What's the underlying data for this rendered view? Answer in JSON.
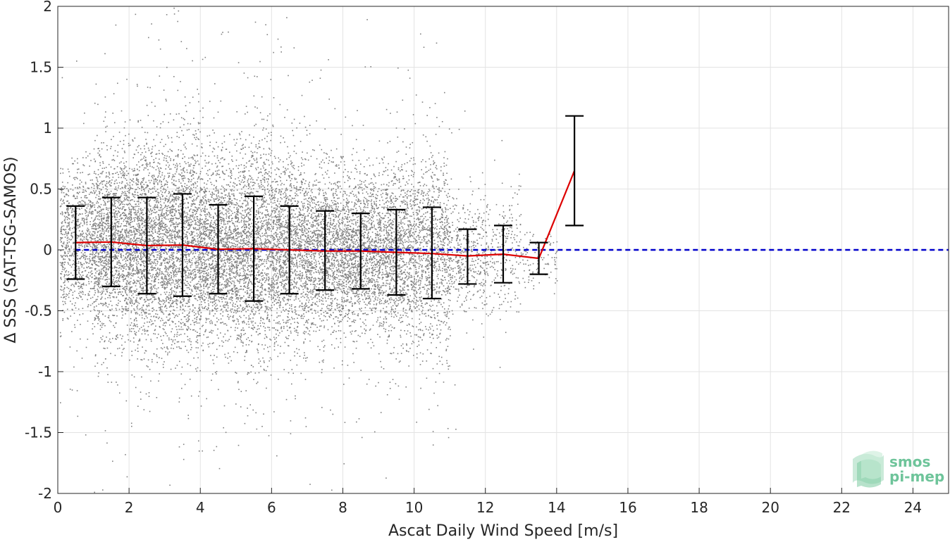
{
  "chart_data": {
    "type": "scatter",
    "title": "",
    "xlabel": "Ascat Daily Wind Speed [m/s]",
    "ylabel": "Δ SSS (SAT-TSG-SAMOS)",
    "xlim": [
      0,
      25
    ],
    "ylim": [
      -2,
      2
    ],
    "xticks": [
      0,
      2,
      4,
      6,
      8,
      10,
      12,
      14,
      16,
      18,
      20,
      22,
      24
    ],
    "yticks": [
      -2,
      -1.5,
      -1,
      -0.5,
      0,
      0.5,
      1,
      1.5,
      2
    ],
    "grid": true,
    "reference_line": {
      "y": 0,
      "color": "#0000cc",
      "style": "dashed"
    },
    "scatter_color": "#808080",
    "bins": [
      {
        "x": 0.5,
        "mean": 0.06,
        "lower": -0.24,
        "upper": 0.36
      },
      {
        "x": 1.5,
        "mean": 0.065,
        "lower": -0.3,
        "upper": 0.43
      },
      {
        "x": 2.5,
        "mean": 0.035,
        "lower": -0.36,
        "upper": 0.43
      },
      {
        "x": 3.5,
        "mean": 0.04,
        "lower": -0.38,
        "upper": 0.46
      },
      {
        "x": 4.5,
        "mean": 0.005,
        "lower": -0.36,
        "upper": 0.37
      },
      {
        "x": 5.5,
        "mean": 0.01,
        "lower": -0.42,
        "upper": 0.44
      },
      {
        "x": 6.5,
        "mean": 0.0,
        "lower": -0.36,
        "upper": 0.36
      },
      {
        "x": 7.5,
        "mean": -0.01,
        "lower": -0.33,
        "upper": 0.32
      },
      {
        "x": 8.5,
        "mean": -0.01,
        "lower": -0.32,
        "upper": 0.3
      },
      {
        "x": 9.5,
        "mean": -0.02,
        "lower": -0.37,
        "upper": 0.33
      },
      {
        "x": 10.5,
        "mean": -0.03,
        "lower": -0.4,
        "upper": 0.35
      },
      {
        "x": 11.5,
        "mean": -0.05,
        "lower": -0.28,
        "upper": 0.17
      },
      {
        "x": 12.5,
        "mean": -0.035,
        "lower": -0.27,
        "upper": 0.2
      },
      {
        "x": 13.5,
        "mean": -0.07,
        "lower": -0.2,
        "upper": 0.06
      },
      {
        "x": 14.5,
        "mean": 0.65,
        "lower": 0.2,
        "upper": 1.1
      }
    ],
    "mean_line_color": "#dd0000",
    "errorbar_color": "#000000"
  },
  "logo": {
    "line1": "smos",
    "line2": "pi-mep"
  }
}
